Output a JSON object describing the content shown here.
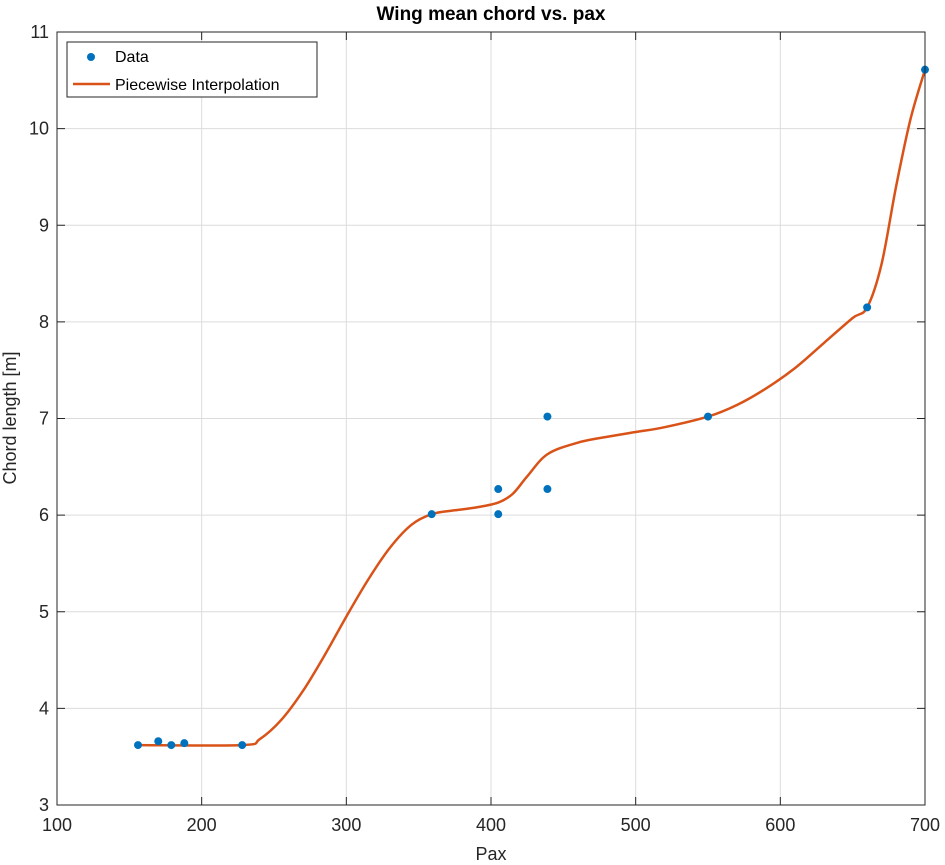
{
  "chart_data": {
    "type": "line",
    "title": "Wing mean chord vs. pax",
    "xlabel": "Pax",
    "ylabel": "Chord length [m]",
    "xlim": [
      100,
      700
    ],
    "ylim": [
      3,
      11
    ],
    "xticks": [
      "100",
      "200",
      "300",
      "400",
      "500",
      "600",
      "700"
    ],
    "yticks": [
      "3",
      "4",
      "5",
      "6",
      "7",
      "8",
      "9",
      "10",
      "11"
    ],
    "grid": true,
    "legend_position": "top-left",
    "series": [
      {
        "name": "Data",
        "kind": "markers",
        "color": "#0072BD",
        "x": [
          156,
          170,
          179,
          188,
          228,
          359,
          405,
          405,
          439,
          439,
          550,
          660,
          700
        ],
        "y": [
          3.62,
          3.66,
          3.62,
          3.64,
          3.62,
          6.01,
          6.27,
          6.01,
          7.02,
          6.27,
          7.02,
          8.15,
          10.61
        ]
      },
      {
        "name": "Piecewise Interpolation",
        "kind": "line",
        "color": "#D95319",
        "x": [
          156,
          228,
          240,
          255,
          270,
          285,
          300,
          315,
          330,
          345,
          359,
          375,
          390,
          405,
          415,
          425,
          439,
          460,
          480,
          500,
          520,
          550,
          570,
          590,
          610,
          630,
          650,
          660,
          670,
          680,
          690,
          700
        ],
        "y": [
          3.62,
          3.62,
          3.68,
          3.88,
          4.18,
          4.55,
          4.95,
          5.33,
          5.66,
          5.9,
          6.01,
          6.05,
          6.08,
          6.13,
          6.22,
          6.4,
          6.63,
          6.75,
          6.81,
          6.86,
          6.91,
          7.02,
          7.14,
          7.31,
          7.52,
          7.78,
          8.04,
          8.15,
          8.6,
          9.4,
          10.1,
          10.61
        ]
      }
    ]
  }
}
